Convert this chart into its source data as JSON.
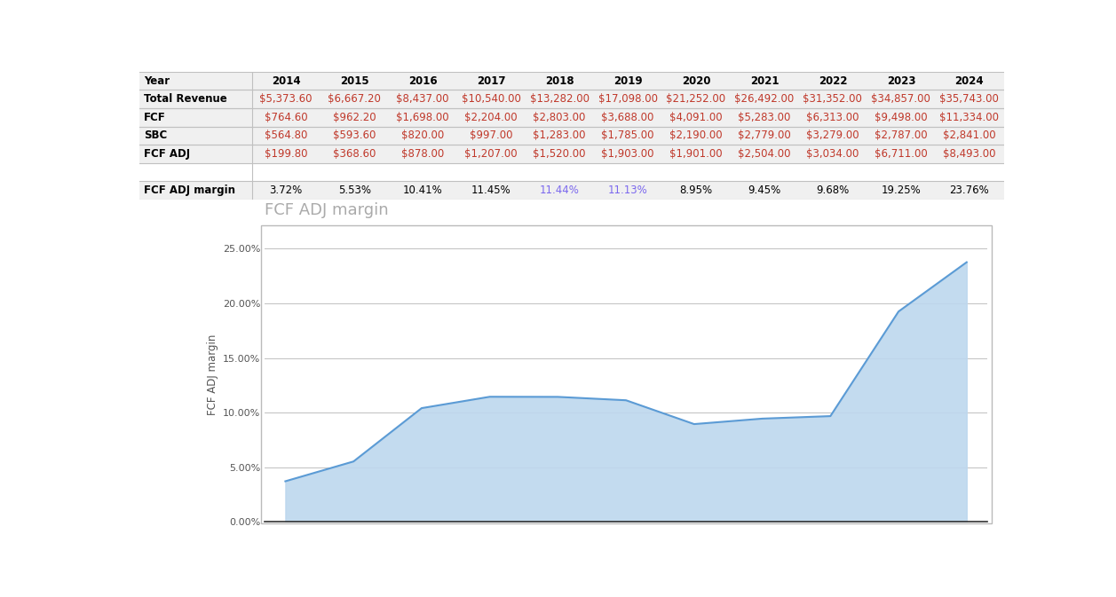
{
  "years": [
    "2014",
    "2015",
    "2016",
    "2017",
    "2018",
    "2019",
    "2020",
    "2021",
    "2022",
    "2023",
    "2024"
  ],
  "total_revenue": [
    "$5,373.60",
    "$6,667.20",
    "$8,437.00",
    "$10,540.00",
    "$13,282.00",
    "$17,098.00",
    "$21,252.00",
    "$26,492.00",
    "$31,352.00",
    "$34,857.00",
    "$35,743.00"
  ],
  "fcf": [
    "$764.60",
    "$962.20",
    "$1,698.00",
    "$2,204.00",
    "$2,803.00",
    "$3,688.00",
    "$4,091.00",
    "$5,283.00",
    "$6,313.00",
    "$9,498.00",
    "$11,334.00"
  ],
  "sbc": [
    "$564.80",
    "$593.60",
    "$820.00",
    "$997.00",
    "$1,283.00",
    "$1,785.00",
    "$2,190.00",
    "$2,779.00",
    "$3,279.00",
    "$2,787.00",
    "$2,841.00"
  ],
  "fcf_adj": [
    "$199.80",
    "$368.60",
    "$878.00",
    "$1,207.00",
    "$1,520.00",
    "$1,903.00",
    "$1,901.00",
    "$2,504.00",
    "$3,034.00",
    "$6,711.00",
    "$8,493.00"
  ],
  "fcf_adj_margin": [
    3.72,
    5.53,
    10.41,
    11.45,
    11.44,
    11.13,
    8.95,
    9.45,
    9.68,
    19.25,
    23.76
  ],
  "fcf_adj_margin_labels": [
    "3.72%",
    "5.53%",
    "10.41%",
    "11.45%",
    "11.44%",
    "11.13%",
    "8.95%",
    "9.45%",
    "9.68%",
    "19.25%",
    "23.76%"
  ],
  "chart_title": "FCF ADJ margin",
  "ylabel": "FCF ADJ margin",
  "line_color": "#5b9bd5",
  "fill_color": "#bdd7ee",
  "grid_color": "#c0c0c0",
  "chart_bg": "#ffffff",
  "purple_indices": [
    4,
    5
  ]
}
